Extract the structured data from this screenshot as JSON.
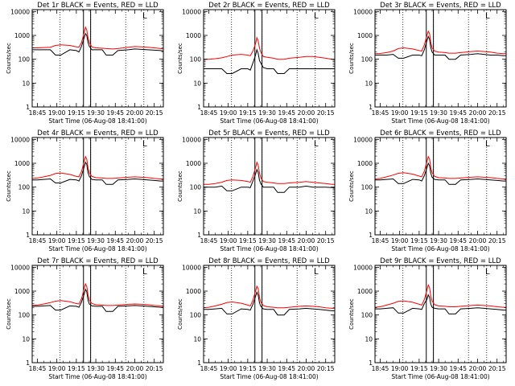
{
  "chart_data": {
    "type": "line",
    "x_tick_labels": [
      "18:45",
      "19:00",
      "19:15",
      "19:30",
      "19:45",
      "20:00",
      "20:15"
    ],
    "x_tick_minutes": [
      0,
      15,
      30,
      45,
      60,
      75,
      90
    ],
    "xlim_minutes": [
      -4,
      97
    ],
    "xlabel": "Start Time (06-Aug-08 18:41:00)",
    "ylabel": "Counts/sec",
    "yscale": "log",
    "ylim": [
      1,
      12000
    ],
    "y_tick_labels": [
      "1",
      "10",
      "100",
      "1000",
      "10000"
    ],
    "y_tick_values": [
      1,
      10,
      100,
      1000,
      10000
    ],
    "dotted_vlines_minutes": [
      17.5,
      41,
      68,
      82
    ],
    "band_minutes": [
      35.5,
      41
    ],
    "corner_mark": "L",
    "colors": {
      "events": "#000000",
      "lld": "#ff0000",
      "axes": "#000000"
    },
    "series_x_minutes": [
      -4,
      0,
      5,
      10,
      14,
      18,
      25,
      30,
      32,
      34,
      36,
      37,
      38,
      39,
      40,
      42,
      45,
      50,
      53,
      58,
      62,
      70,
      75,
      80,
      85,
      90,
      95,
      97
    ],
    "panels": [
      {
        "title": "Det 1r BLACK = Events, RED = LLD",
        "series": [
          {
            "name": "Events",
            "color": "#000000",
            "values": [
              250,
              250,
              250,
              250,
              150,
              150,
              250,
              230,
              200,
              350,
              800,
              1200,
              1000,
              500,
              350,
              250,
              250,
              250,
              150,
              150,
              230,
              250,
              270,
              260,
              250,
              240,
              230,
              220
            ]
          },
          {
            "name": "LLD",
            "color": "#ff0000",
            "values": [
              300,
              300,
              310,
              320,
              380,
              400,
              380,
              330,
              320,
              500,
              1300,
              2200,
              1700,
              800,
              500,
              330,
              300,
              290,
              280,
              270,
              280,
              320,
              340,
              330,
              320,
              300,
              280,
              270
            ]
          }
        ]
      },
      {
        "title": "Det 2r BLACK = Events, RED = LLD",
        "series": [
          {
            "name": "Events",
            "color": "#000000",
            "values": [
              40,
              40,
              40,
              40,
              25,
              25,
              40,
              40,
              35,
              70,
              150,
              250,
              180,
              90,
              70,
              45,
              40,
              40,
              25,
              25,
              40,
              40,
              40,
              40,
              40,
              40,
              40,
              40
            ]
          },
          {
            "name": "LLD",
            "color": "#ff0000",
            "values": [
              100,
              100,
              105,
              115,
              130,
              150,
              160,
              150,
              140,
              220,
              450,
              800,
              600,
              300,
              200,
              130,
              120,
              110,
              100,
              100,
              110,
              120,
              130,
              130,
              120,
              110,
              100,
              100
            ]
          }
        ]
      },
      {
        "title": "Det 3r BLACK = Events, RED = LLD",
        "series": [
          {
            "name": "Events",
            "color": "#000000",
            "values": [
              150,
              150,
              150,
              160,
              110,
              110,
              150,
              150,
              140,
              250,
              600,
              900,
              700,
              300,
              200,
              150,
              150,
              150,
              100,
              100,
              150,
              160,
              170,
              160,
              150,
              150,
              140,
              140
            ]
          },
          {
            "name": "LLD",
            "color": "#ff0000",
            "values": [
              170,
              175,
              190,
              220,
              280,
              300,
              270,
              230,
              220,
              400,
              1000,
              1500,
              1200,
              500,
              300,
              220,
              200,
              190,
              180,
              180,
              190,
              210,
              220,
              210,
              200,
              180,
              170,
              170
            ]
          }
        ]
      },
      {
        "title": "Det 4r BLACK = Events, RED = LLD",
        "series": [
          {
            "name": "Events",
            "color": "#000000",
            "values": [
              200,
              200,
              210,
              220,
              150,
              150,
              210,
              200,
              180,
              300,
              700,
              1100,
              900,
              400,
              280,
              210,
              200,
              200,
              130,
              130,
              200,
              210,
              220,
              210,
              200,
              190,
              180,
              180
            ]
          },
          {
            "name": "LLD",
            "color": "#ff0000",
            "values": [
              230,
              240,
              270,
              310,
              370,
              390,
              340,
              280,
              270,
              450,
              1200,
              1900,
              1500,
              650,
              400,
              280,
              250,
              240,
              230,
              230,
              240,
              260,
              270,
              260,
              250,
              230,
              220,
              220
            ]
          }
        ]
      },
      {
        "title": "Det 5r BLACK = Events, RED = LLD",
        "series": [
          {
            "name": "Events",
            "color": "#000000",
            "values": [
              100,
              100,
              100,
              110,
              70,
              70,
              100,
              100,
              95,
              180,
              350,
              550,
              420,
              200,
              140,
              100,
              100,
              100,
              60,
              60,
              100,
              100,
              110,
              100,
              100,
              100,
              95,
              95
            ]
          },
          {
            "name": "LLD",
            "color": "#ff0000",
            "values": [
              130,
              130,
              140,
              160,
              190,
              200,
              190,
              170,
              160,
              280,
              650,
              1100,
              850,
              400,
              250,
              170,
              160,
              150,
              140,
              140,
              150,
              160,
              170,
              160,
              150,
              140,
              130,
              130
            ]
          }
        ]
      },
      {
        "title": "Det 6r BLACK = Events, RED = LLD",
        "series": [
          {
            "name": "Events",
            "color": "#000000",
            "values": [
              200,
              200,
              210,
              220,
              140,
              140,
              210,
              200,
              180,
              300,
              650,
              1000,
              800,
              380,
              260,
              210,
              200,
              200,
              130,
              130,
              200,
              210,
              220,
              210,
              200,
              190,
              180,
              180
            ]
          },
          {
            "name": "LLD",
            "color": "#ff0000",
            "values": [
              220,
              230,
              270,
              320,
              380,
              400,
              350,
              290,
              270,
              460,
              1200,
              1900,
              1500,
              650,
              400,
              280,
              250,
              240,
              230,
              230,
              240,
              260,
              270,
              260,
              250,
              230,
              220,
              220
            ]
          }
        ]
      },
      {
        "title": "Det 7r BLACK = Events, RED = LLD",
        "series": [
          {
            "name": "Events",
            "color": "#000000",
            "values": [
              230,
              230,
              240,
              250,
              160,
              160,
              240,
              230,
              210,
              350,
              750,
              1200,
              950,
              420,
              290,
              240,
              230,
              230,
              140,
              140,
              230,
              240,
              250,
              240,
              230,
              220,
              210,
              210
            ]
          },
          {
            "name": "LLD",
            "color": "#ff0000",
            "values": [
              250,
              260,
              290,
              330,
              380,
              400,
              360,
              300,
              290,
              480,
              1300,
              2000,
              1600,
              700,
              420,
              300,
              270,
              260,
              250,
              250,
              260,
              280,
              290,
              280,
              270,
              250,
              240,
              240
            ]
          }
        ]
      },
      {
        "title": "Det 8r BLACK = Events, RED = LLD",
        "series": [
          {
            "name": "Events",
            "color": "#000000",
            "values": [
              170,
              170,
              180,
              190,
              110,
              110,
              180,
              170,
              160,
              280,
              600,
              900,
              700,
              330,
              230,
              180,
              170,
              170,
              100,
              100,
              170,
              180,
              190,
              180,
              170,
              160,
              150,
              150
            ]
          },
          {
            "name": "LLD",
            "color": "#ff0000",
            "values": [
              200,
              210,
              240,
              280,
              330,
              350,
              310,
              260,
              240,
              420,
              1000,
              1600,
              1300,
              560,
              350,
              250,
              220,
              210,
              200,
              200,
              210,
              230,
              240,
              230,
              220,
              200,
              190,
              190
            ]
          }
        ]
      },
      {
        "title": "Det 9r BLACK = Events, RED = LLD",
        "series": [
          {
            "name": "Events",
            "color": "#000000",
            "values": [
              180,
              180,
              190,
              200,
              120,
              120,
              190,
              180,
              170,
              300,
              450,
              700,
              550,
              280,
              210,
              190,
              180,
              180,
              110,
              110,
              180,
              190,
              200,
              190,
              180,
              170,
              160,
              160
            ]
          },
          {
            "name": "LLD",
            "color": "#ff0000",
            "values": [
              210,
              220,
              260,
              310,
              370,
              390,
              340,
              280,
              260,
              440,
              1100,
              1800,
              1400,
              600,
              380,
              270,
              240,
              230,
              220,
              220,
              230,
              250,
              260,
              250,
              240,
              220,
              210,
              210
            ]
          }
        ]
      }
    ]
  }
}
